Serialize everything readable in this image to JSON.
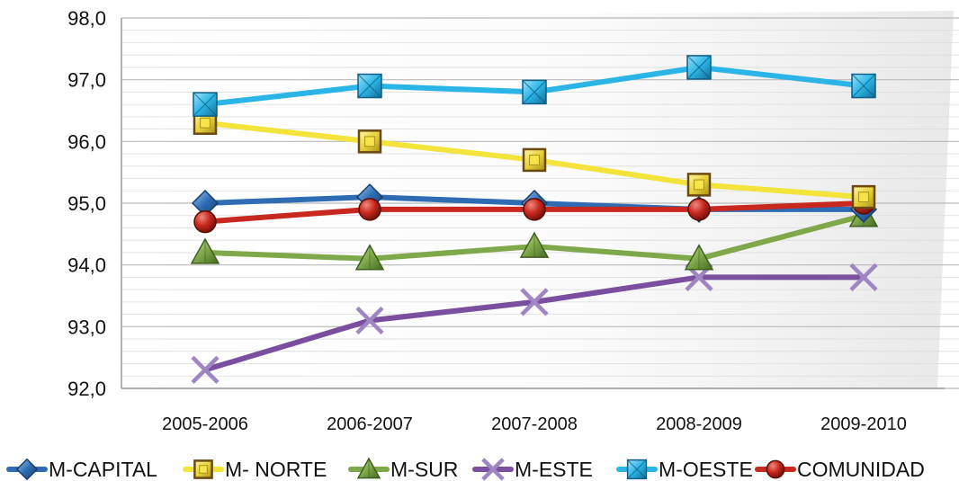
{
  "chart_data": {
    "type": "line",
    "title": "",
    "xlabel": "",
    "ylabel": "",
    "categories": [
      "2005-2006",
      "2006-2007",
      "2007-2008",
      "2008-2009",
      "2009-2010"
    ],
    "ylim": [
      92.0,
      98.0
    ],
    "yticks": [
      "92,0",
      "93,0",
      "94,0",
      "95,0",
      "96,0",
      "97,0",
      "98,0"
    ],
    "grid": true,
    "legend_position": "bottom",
    "series": [
      {
        "name": "M-CAPITAL",
        "color": "#2E6DB4",
        "marker": "diamond",
        "values": [
          95.0,
          95.1,
          95.0,
          94.9,
          94.9
        ]
      },
      {
        "name": "M- NORTE",
        "color": "#F2E43A",
        "marker": "square-gold",
        "values": [
          96.3,
          96.0,
          95.7,
          95.3,
          95.1
        ]
      },
      {
        "name": "M-SUR",
        "color": "#7FA84A",
        "marker": "triangle",
        "values": [
          94.2,
          94.1,
          94.3,
          94.1,
          94.8
        ]
      },
      {
        "name": "M-ESTE",
        "color": "#7A4FA0",
        "marker": "x",
        "values": [
          92.3,
          93.1,
          93.4,
          93.8,
          93.8
        ]
      },
      {
        "name": "M-OESTE",
        "color": "#2BB5E6",
        "marker": "square-cyan",
        "values": [
          96.6,
          96.9,
          96.8,
          97.2,
          96.9
        ]
      },
      {
        "name": "COMUNIDAD",
        "color": "#C8281E",
        "marker": "circle",
        "values": [
          94.7,
          94.9,
          94.9,
          94.9,
          95.0
        ]
      }
    ]
  }
}
